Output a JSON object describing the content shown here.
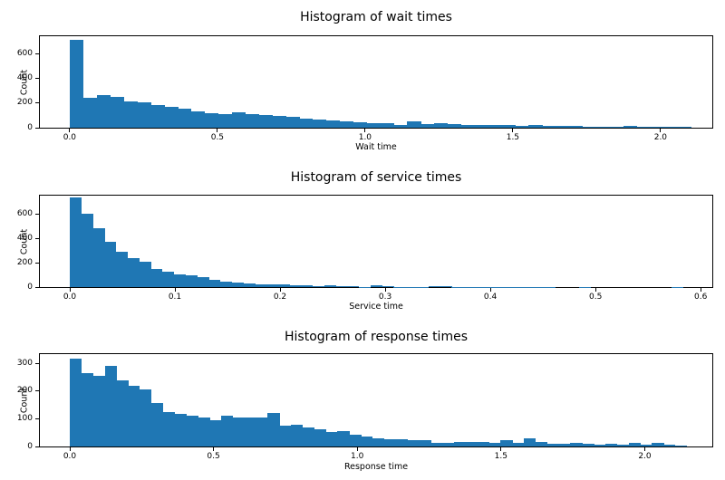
{
  "figure": {
    "background": "#ffffff",
    "bar_color": "#1f77b4",
    "axis_color": "#000000",
    "text_color": "#000000"
  },
  "chart_data": [
    {
      "type": "bar",
      "subtype": "histogram",
      "title": "Histogram of wait times",
      "xlabel": "Wait time",
      "ylabel": "Count",
      "xticks": [
        "0.0",
        "0.5",
        "1.0",
        "1.5",
        "2.0"
      ],
      "yticks": [
        "0",
        "200",
        "400",
        "600"
      ],
      "xlim": [
        -0.101,
        2.175
      ],
      "ylim": [
        0,
        739
      ],
      "grid": false,
      "legend": null,
      "bin_start": 0.0,
      "bin_width": 0.0457,
      "counts": [
        710,
        245,
        262,
        248,
        215,
        205,
        185,
        170,
        152,
        135,
        117,
        110,
        124,
        110,
        100,
        93,
        86,
        76,
        68,
        59,
        50,
        42,
        36,
        34,
        24,
        52,
        29,
        40,
        29,
        24,
        24,
        20,
        20,
        15,
        22,
        15,
        15,
        18,
        10,
        8,
        8,
        12,
        6,
        5,
        5,
        4
      ]
    },
    {
      "type": "bar",
      "subtype": "histogram",
      "title": "Histogram of service times",
      "xlabel": "Service time",
      "ylabel": "Count",
      "xticks": [
        "0.0",
        "0.1",
        "0.2",
        "0.3",
        "0.4",
        "0.5",
        "0.6"
      ],
      "yticks": [
        "0",
        "200",
        "400",
        "600"
      ],
      "xlim": [
        -0.0284,
        0.611
      ],
      "ylim": [
        0,
        757
      ],
      "grid": false,
      "legend": null,
      "bin_start": 0.0,
      "bin_width": 0.011,
      "counts": [
        740,
        610,
        490,
        378,
        290,
        240,
        208,
        152,
        127,
        107,
        95,
        82,
        58,
        45,
        35,
        30,
        26,
        22,
        19,
        15,
        13,
        11,
        14,
        8,
        6,
        2,
        12,
        10,
        2,
        1,
        1,
        8,
        7,
        1,
        1,
        1,
        1,
        1,
        1,
        1,
        1,
        1,
        0,
        0,
        1,
        0,
        0,
        0,
        0,
        0,
        0,
        0,
        1
      ]
    },
    {
      "type": "bar",
      "subtype": "histogram",
      "title": "Histogram of response times",
      "xlabel": "Response time",
      "ylabel": "Count",
      "xticks": [
        "0.0",
        "0.5",
        "1.0",
        "1.5",
        "2.0"
      ],
      "yticks": [
        "0",
        "100",
        "200",
        "300"
      ],
      "xlim": [
        -0.104,
        2.235
      ],
      "ylim": [
        0,
        333
      ],
      "grid": false,
      "legend": null,
      "bin_start": 0.0,
      "bin_width": 0.0405,
      "counts": [
        318,
        263,
        256,
        291,
        237,
        220,
        205,
        156,
        125,
        117,
        111,
        104,
        95,
        112,
        106,
        104,
        104,
        122,
        74,
        78,
        67,
        62,
        51,
        57,
        43,
        36,
        31,
        25,
        25,
        22,
        22,
        13,
        13,
        16,
        16,
        16,
        13,
        22,
        13,
        28,
        16,
        9,
        9,
        13,
        9,
        6,
        9,
        6,
        13,
        6,
        12,
        6,
        3
      ]
    }
  ]
}
